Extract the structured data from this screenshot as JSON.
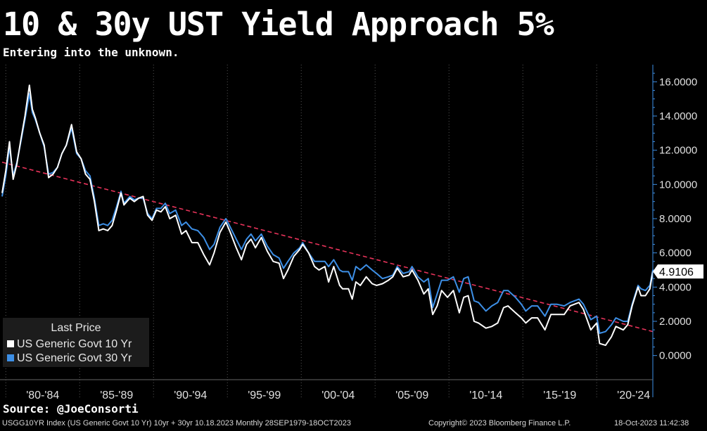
{
  "header": {
    "title": "10 & 30y UST Yield Approach 5%",
    "subtitle": "Entering into the unknown."
  },
  "legend": {
    "title": "Last Price",
    "items": [
      {
        "label": "US Generic Govt 10 Yr",
        "color": "#ffffff"
      },
      {
        "label": "US Generic Govt 30 Yr",
        "color": "#3d8fe6"
      }
    ]
  },
  "last_price_label": "4.9106",
  "source": "Source: @JoeConsorti",
  "footer": {
    "left": "USGG10YR Index (US Generic Govt 10 Yr) 10yr + 30yr 10.18.2023  Monthly 28SEP1979-18OCT2023",
    "center": "Copyright© 2023 Bloomberg Finance L.P.",
    "right": "18-Oct-2023 11:42:38"
  },
  "colors": {
    "background": "#000000",
    "ten_year": "#ffffff",
    "thirty_year": "#3d8fe6",
    "trendline": "#e8335a",
    "axis": "#3d8fe6"
  },
  "chart_data": {
    "type": "line",
    "title": "10 & 30y UST Yield Approach 5%",
    "subtitle": "Entering into the unknown.",
    "x_range": [
      1979.75,
      2023.8
    ],
    "ylim": [
      -1,
      17
    ],
    "y_ticks": [
      "0.0000",
      "2.0000",
      "4.0000",
      "6.0000",
      "8.0000",
      "10.0000",
      "12.0000",
      "14.0000",
      "16.0000"
    ],
    "y_tick_values": [
      0,
      2,
      4,
      6,
      8,
      10,
      12,
      14,
      16
    ],
    "x_categories": [
      "'80-'84",
      "'85-'89",
      "'90-'94",
      "'95-'99",
      "'00-'04",
      "'05-'09",
      "'10-'14",
      "'15-'19",
      "'20-'24"
    ],
    "grid": "vertical dotted",
    "legend_position": "bottom-left",
    "last_value": 4.9106,
    "trendline": {
      "name": "",
      "x": [
        1979.75,
        2023.8
      ],
      "y": [
        11.3,
        1.4
      ]
    },
    "series": [
      {
        "name": "US Generic Govt 10 Yr",
        "x": [
          1979.75,
          1980.0,
          1980.25,
          1980.5,
          1980.75,
          1981.0,
          1981.3,
          1981.6,
          1981.8,
          1982.0,
          1982.3,
          1982.6,
          1982.9,
          1983.2,
          1983.5,
          1983.8,
          1984.1,
          1984.45,
          1984.8,
          1985.1,
          1985.4,
          1985.7,
          1986.0,
          1986.3,
          1986.6,
          1986.9,
          1987.2,
          1987.5,
          1987.8,
          1988.0,
          1988.4,
          1988.7,
          1989.0,
          1989.3,
          1989.6,
          1989.9,
          1990.2,
          1990.5,
          1990.8,
          1991.1,
          1991.5,
          1991.9,
          1992.2,
          1992.6,
          1993.0,
          1993.4,
          1993.8,
          1994.1,
          1994.5,
          1994.9,
          1995.2,
          1995.6,
          1995.95,
          1996.3,
          1996.6,
          1996.9,
          1997.3,
          1997.7,
          1998.1,
          1998.5,
          1998.8,
          1999.1,
          1999.5,
          1999.9,
          2000.1,
          2000.5,
          2000.9,
          2001.2,
          2001.6,
          2001.85,
          2002.2,
          2002.6,
          2002.8,
          2003.2,
          2003.45,
          2003.7,
          2004.0,
          2004.4,
          2004.8,
          2005.1,
          2005.5,
          2005.9,
          2006.2,
          2006.5,
          2006.9,
          2007.3,
          2007.5,
          2007.9,
          2008.3,
          2008.6,
          2008.9,
          2009.2,
          2009.5,
          2009.9,
          2010.3,
          2010.7,
          2011.0,
          2011.3,
          2011.7,
          2012.0,
          2012.5,
          2012.9,
          2013.3,
          2013.7,
          2014.0,
          2014.5,
          2014.9,
          2015.2,
          2015.6,
          2016.0,
          2016.5,
          2016.9,
          2017.3,
          2017.8,
          2018.2,
          2018.8,
          2019.1,
          2019.6,
          2020.0,
          2020.2,
          2020.6,
          2021.0,
          2021.3,
          2021.8,
          2022.1,
          2022.4,
          2022.8,
          2023.0,
          2023.3,
          2023.6,
          2023.8
        ],
        "values": [
          9.5,
          10.8,
          12.5,
          10.3,
          11.2,
          12.5,
          14.0,
          15.8,
          14.4,
          13.9,
          13.0,
          12.3,
          10.4,
          10.6,
          11.0,
          11.8,
          12.3,
          13.5,
          11.9,
          11.5,
          10.6,
          10.3,
          9.0,
          7.3,
          7.4,
          7.3,
          7.6,
          8.5,
          9.5,
          8.8,
          9.2,
          9.0,
          9.2,
          9.3,
          8.2,
          7.9,
          8.5,
          8.4,
          8.7,
          8.0,
          8.2,
          7.1,
          7.3,
          6.6,
          6.6,
          5.9,
          5.3,
          6.0,
          7.2,
          7.8,
          7.2,
          6.3,
          5.6,
          6.5,
          6.8,
          6.3,
          6.9,
          6.1,
          5.5,
          5.4,
          4.5,
          5.0,
          5.8,
          6.2,
          6.5,
          6.0,
          5.2,
          5.0,
          5.2,
          4.3,
          5.2,
          4.1,
          3.9,
          3.9,
          3.3,
          4.3,
          4.1,
          4.6,
          4.2,
          4.1,
          4.2,
          4.4,
          4.6,
          5.1,
          4.6,
          4.7,
          5.0,
          4.4,
          3.6,
          3.9,
          2.4,
          2.9,
          3.8,
          3.4,
          3.8,
          2.5,
          3.4,
          3.5,
          2.0,
          1.9,
          1.6,
          1.7,
          1.9,
          2.8,
          2.9,
          2.5,
          2.2,
          1.9,
          2.2,
          2.2,
          1.5,
          2.4,
          2.4,
          2.4,
          2.9,
          3.1,
          2.7,
          1.5,
          1.9,
          0.7,
          0.6,
          1.1,
          1.7,
          1.5,
          1.8,
          2.9,
          4.0,
          3.5,
          3.5,
          3.9,
          4.9106
        ]
      },
      {
        "name": "US Generic Govt 30 Yr",
        "x": [
          1979.75,
          1980.0,
          1980.25,
          1980.5,
          1980.75,
          1981.0,
          1981.3,
          1981.6,
          1981.8,
          1982.0,
          1982.3,
          1982.6,
          1982.9,
          1983.2,
          1983.5,
          1983.8,
          1984.1,
          1984.45,
          1984.8,
          1985.1,
          1985.4,
          1985.7,
          1986.0,
          1986.3,
          1986.6,
          1986.9,
          1987.2,
          1987.5,
          1987.8,
          1988.0,
          1988.4,
          1988.7,
          1989.0,
          1989.3,
          1989.6,
          1989.9,
          1990.2,
          1990.5,
          1990.8,
          1991.1,
          1991.5,
          1991.9,
          1992.2,
          1992.6,
          1993.0,
          1993.4,
          1993.8,
          1994.1,
          1994.5,
          1994.9,
          1995.2,
          1995.6,
          1995.95,
          1996.3,
          1996.6,
          1996.9,
          1997.3,
          1997.7,
          1998.1,
          1998.5,
          1998.8,
          1999.1,
          1999.5,
          1999.9,
          2000.1,
          2000.5,
          2000.9,
          2001.2,
          2001.6,
          2001.85,
          2002.2,
          2002.6,
          2002.8,
          2003.2,
          2003.45,
          2003.7,
          2004.0,
          2004.4,
          2004.8,
          2005.1,
          2005.5,
          2005.9,
          2006.2,
          2006.5,
          2006.9,
          2007.3,
          2007.5,
          2007.9,
          2008.3,
          2008.6,
          2008.9,
          2009.2,
          2009.5,
          2009.9,
          2010.3,
          2010.7,
          2011.0,
          2011.3,
          2011.7,
          2012.0,
          2012.5,
          2012.9,
          2013.3,
          2013.7,
          2014.0,
          2014.5,
          2014.9,
          2015.2,
          2015.6,
          2016.0,
          2016.5,
          2016.9,
          2017.3,
          2017.8,
          2018.2,
          2018.8,
          2019.1,
          2019.6,
          2020.0,
          2020.2,
          2020.6,
          2021.0,
          2021.3,
          2021.8,
          2022.1,
          2022.4,
          2022.8,
          2023.0,
          2023.3,
          2023.6,
          2023.8
        ],
        "values": [
          9.3,
          10.5,
          12.2,
          10.5,
          11.3,
          12.4,
          13.8,
          15.3,
          14.2,
          13.8,
          13.0,
          12.2,
          10.6,
          10.7,
          11.0,
          11.8,
          12.3,
          13.3,
          11.8,
          11.5,
          10.8,
          10.5,
          9.2,
          7.6,
          7.7,
          7.6,
          7.9,
          8.7,
          9.6,
          8.9,
          9.3,
          9.1,
          9.2,
          9.2,
          8.3,
          8.0,
          8.6,
          8.6,
          8.9,
          8.3,
          8.5,
          7.6,
          7.8,
          7.4,
          7.3,
          6.9,
          6.2,
          6.5,
          7.5,
          8.0,
          7.5,
          6.8,
          6.2,
          6.8,
          7.1,
          6.7,
          7.1,
          6.4,
          5.9,
          5.7,
          5.1,
          5.5,
          6.0,
          6.3,
          6.6,
          6.0,
          5.5,
          5.5,
          5.5,
          5.2,
          5.6,
          5.0,
          4.9,
          4.9,
          4.4,
          5.2,
          5.0,
          5.3,
          5.0,
          4.8,
          4.5,
          4.6,
          4.7,
          5.2,
          4.8,
          4.9,
          5.2,
          4.6,
          4.3,
          4.5,
          2.8,
          3.6,
          4.4,
          4.4,
          4.6,
          3.7,
          4.5,
          4.6,
          3.2,
          3.1,
          2.6,
          2.9,
          3.1,
          3.8,
          3.8,
          3.4,
          3.0,
          2.6,
          2.9,
          2.9,
          2.3,
          3.0,
          3.0,
          2.9,
          3.1,
          3.3,
          3.0,
          2.1,
          2.3,
          1.3,
          1.4,
          1.8,
          2.2,
          2.0,
          2.0,
          3.0,
          4.1,
          3.9,
          3.8,
          4.1,
          5.0
        ]
      }
    ]
  }
}
